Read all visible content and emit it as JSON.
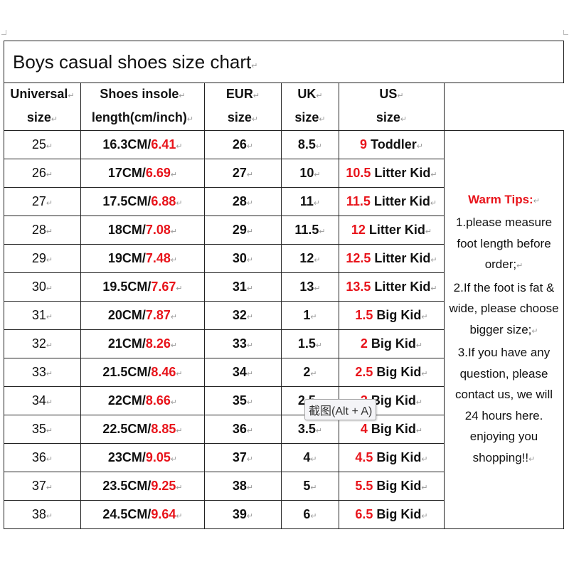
{
  "title": "Boys casual shoes size chart",
  "headers": [
    [
      "Universal",
      "size"
    ],
    [
      "Shoes insole",
      "length(cm/inch)"
    ],
    [
      "EUR",
      "size"
    ],
    [
      "UK",
      "size"
    ],
    [
      "US",
      "size"
    ]
  ],
  "rows": [
    {
      "universal": "25",
      "cm": "16.3CM/",
      "inch": "6.41",
      "eur": "26",
      "uk": "8.5",
      "us_num": "9",
      "us_label": " Toddler"
    },
    {
      "universal": "26",
      "cm": "17CM/",
      "inch": "6.69",
      "eur": "27",
      "uk": "10",
      "us_num": "10.5",
      "us_label": " Litter Kid"
    },
    {
      "universal": "27",
      "cm": "17.5CM/",
      "inch": "6.88",
      "eur": "28",
      "uk": "11",
      "us_num": "11.5",
      "us_label": " Litter Kid"
    },
    {
      "universal": "28",
      "cm": "18CM/",
      "inch": "7.08",
      "eur": "29",
      "uk": "11.5",
      "us_num": "12",
      "us_label": " Litter Kid"
    },
    {
      "universal": "29",
      "cm": "19CM/",
      "inch": "7.48",
      "eur": "30",
      "uk": "12",
      "us_num": "12.5",
      "us_label": " Litter Kid"
    },
    {
      "universal": "30",
      "cm": "19.5CM/",
      "inch": "7.67",
      "eur": "31",
      "uk": "13",
      "us_num": "13.5",
      "us_label": " Litter Kid"
    },
    {
      "universal": "31",
      "cm": "20CM/",
      "inch": "7.87",
      "eur": "32",
      "uk": "1",
      "us_num": "1.5",
      "us_label": " Big Kid"
    },
    {
      "universal": "32",
      "cm": "21CM/",
      "inch": "8.26",
      "eur": "33",
      "uk": "1.5",
      "us_num": "2",
      "us_label": " Big Kid"
    },
    {
      "universal": "33",
      "cm": "21.5CM/",
      "inch": "8.46",
      "eur": "34",
      "uk": "2",
      "us_num": "2.5",
      "us_label": " Big Kid"
    },
    {
      "universal": "34",
      "cm": "22CM/",
      "inch": "8.66",
      "eur": "35",
      "uk": "2.5",
      "us_num": "3",
      "us_label": " Big Kid"
    },
    {
      "universal": "35",
      "cm": "22.5CM/",
      "inch": "8.85",
      "eur": "36",
      "uk": "3.5",
      "us_num": "4",
      "us_label": " Big Kid"
    },
    {
      "universal": "36",
      "cm": "23CM/",
      "inch": "9.05",
      "eur": "37",
      "uk": "4",
      "us_num": "4.5",
      "us_label": " Big Kid"
    },
    {
      "universal": "37",
      "cm": "23.5CM/",
      "inch": "9.25",
      "eur": "38",
      "uk": "5",
      "us_num": "5.5",
      "us_label": " Big Kid"
    },
    {
      "universal": "38",
      "cm": "24.5CM/",
      "inch": "9.64",
      "eur": "39",
      "uk": "6",
      "us_num": "6.5",
      "us_label": " Big Kid"
    }
  ],
  "tips": {
    "title": "Warm Tips:",
    "lines": [
      "1.please measure foot length before order;",
      "2.If the foot is fat & wide, please choose bigger size;",
      "3.If you have any question, please contact us, we will 24 hours here. enjoying you shopping!!"
    ]
  },
  "tooltip": "截图(Alt + A)",
  "colors": {
    "accent_red": "#e8141b",
    "border": "#222222"
  }
}
